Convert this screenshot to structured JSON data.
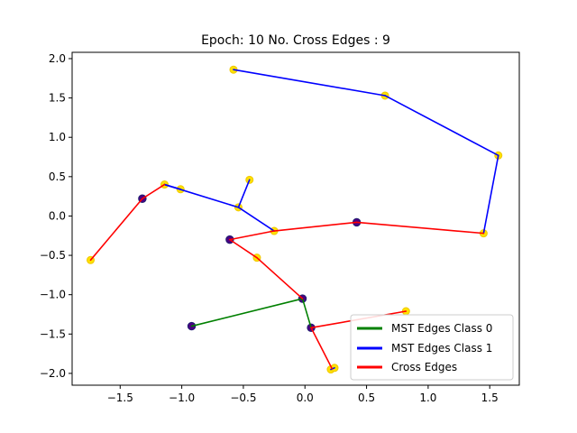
{
  "chart_data": {
    "type": "scatter",
    "title": "Epoch: 10 No. Cross Edges : 9",
    "xlabel": "",
    "ylabel": "",
    "xlim": [
      -1.89,
      1.74
    ],
    "ylim": [
      -2.15,
      2.08
    ],
    "xticks": [
      -1.5,
      -1.0,
      -0.5,
      0.0,
      0.5,
      1.0,
      1.5
    ],
    "xtick_labels": [
      "−1.5",
      "−1.0",
      "−0.5",
      "0.0",
      "0.5",
      "1.0",
      "1.5"
    ],
    "yticks": [
      2.0,
      1.5,
      1.0,
      0.5,
      0.0,
      -0.5,
      -1.0,
      -1.5,
      -2.0
    ],
    "ytick_labels": [
      "2.0",
      "1.5",
      "1.0",
      "0.5",
      "0.0",
      "−0.5",
      "−1.0",
      "−1.5",
      "−2.0"
    ],
    "grid": false,
    "legend_position": "lower-right",
    "points_class0": [
      [
        -1.32,
        0.22
      ],
      [
        -0.61,
        -0.3
      ],
      [
        0.42,
        -0.08
      ],
      [
        -0.02,
        -1.05
      ],
      [
        -0.92,
        -1.4
      ],
      [
        0.05,
        -1.42
      ]
    ],
    "points_class1": [
      [
        -0.58,
        1.86
      ],
      [
        0.65,
        1.53
      ],
      [
        1.57,
        0.77
      ],
      [
        1.45,
        -0.22
      ],
      [
        -0.45,
        0.46
      ],
      [
        -0.54,
        0.11
      ],
      [
        -1.14,
        0.4
      ],
      [
        -1.01,
        0.34
      ],
      [
        -0.25,
        -0.19
      ],
      [
        -1.74,
        -0.56
      ],
      [
        -0.39,
        -0.53
      ],
      [
        0.82,
        -1.21
      ],
      [
        0.21,
        -1.95
      ],
      [
        0.24,
        -1.93
      ]
    ],
    "series": [
      {
        "name": "MST Edges Class 0",
        "color": "#008000",
        "segments": [
          [
            [
              -0.92,
              -1.4
            ],
            [
              -0.02,
              -1.05
            ]
          ],
          [
            [
              -0.02,
              -1.05
            ],
            [
              0.05,
              -1.42
            ]
          ]
        ]
      },
      {
        "name": "MST Edges Class 1",
        "color": "#0000ff",
        "segments": [
          [
            [
              -0.58,
              1.86
            ],
            [
              0.65,
              1.53
            ]
          ],
          [
            [
              0.65,
              1.53
            ],
            [
              1.57,
              0.77
            ]
          ],
          [
            [
              1.57,
              0.77
            ],
            [
              1.45,
              -0.22
            ]
          ],
          [
            [
              -0.45,
              0.46
            ],
            [
              -0.54,
              0.11
            ]
          ],
          [
            [
              -1.14,
              0.4
            ],
            [
              -0.54,
              0.11
            ]
          ],
          [
            [
              -0.54,
              0.11
            ],
            [
              -0.25,
              -0.19
            ]
          ],
          [
            [
              -1.14,
              0.4
            ],
            [
              -1.01,
              0.34
            ]
          ],
          [
            [
              0.21,
              -1.95
            ],
            [
              0.24,
              -1.93
            ]
          ]
        ]
      },
      {
        "name": "Cross Edges",
        "color": "#ff0000",
        "segments": [
          [
            [
              -1.74,
              -0.56
            ],
            [
              -1.32,
              0.22
            ]
          ],
          [
            [
              -1.32,
              0.22
            ],
            [
              -1.14,
              0.4
            ]
          ],
          [
            [
              -0.25,
              -0.19
            ],
            [
              0.42,
              -0.08
            ]
          ],
          [
            [
              0.42,
              -0.08
            ],
            [
              1.45,
              -0.22
            ]
          ],
          [
            [
              -0.61,
              -0.3
            ],
            [
              -0.25,
              -0.19
            ]
          ],
          [
            [
              -0.61,
              -0.3
            ],
            [
              -0.39,
              -0.53
            ]
          ],
          [
            [
              -0.39,
              -0.53
            ],
            [
              -0.02,
              -1.05
            ]
          ],
          [
            [
              0.05,
              -1.42
            ],
            [
              0.82,
              -1.21
            ]
          ],
          [
            [
              0.05,
              -1.42
            ],
            [
              0.22,
              -1.94
            ]
          ]
        ]
      }
    ],
    "colors": {
      "class0_fill": "#4b0082",
      "class0_edge": "#1f1f70",
      "class1_fill": "#ffe100",
      "class1_edge": "#f0c800"
    }
  }
}
